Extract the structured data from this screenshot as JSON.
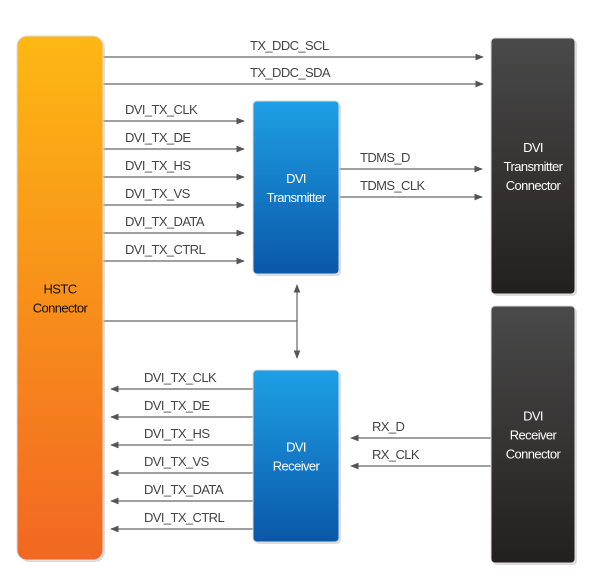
{
  "blocks": {
    "hstc": {
      "lines": [
        "HSTC",
        "Connector"
      ],
      "color_top": "#fdb813",
      "color_bottom": "#f26722"
    },
    "transmitter": {
      "lines": [
        "DVI",
        "Transmitter"
      ],
      "color_top": "#1ea0e6",
      "color_bottom": "#0a57a8"
    },
    "receiver": {
      "lines": [
        "DVI",
        "Receiver"
      ],
      "color_top": "#1ea0e6",
      "color_bottom": "#0a57a8"
    },
    "tx_connector": {
      "lines": [
        "DVI",
        "Transmitter",
        "Connector"
      ],
      "color_top": "#4a4a4a",
      "color_bottom": "#231f1e"
    },
    "rx_connector": {
      "lines": [
        "DVI",
        "Receiver",
        "Connector"
      ],
      "color_top": "#4a4a4a",
      "color_bottom": "#231f1e"
    }
  },
  "signals": {
    "ddc": [
      "TX_DDC_SCL",
      "TX_DDC_SDA"
    ],
    "to_transmitter": [
      "DVI_TX_CLK",
      "DVI_TX_DE",
      "DVI_TX_HS",
      "DVI_TX_VS",
      "DVI_TX_DATA",
      "DVI_TX_CTRL"
    ],
    "transmitter_out": [
      "TDMS_D",
      "TDMS_CLK"
    ],
    "from_receiver": [
      "DVI_TX_CLK",
      "DVI_TX_DE",
      "DVI_TX_HS",
      "DVI_TX_VS",
      "DVI_TX_DATA",
      "DVI_TX_CTRL"
    ],
    "receiver_in": [
      "RX_D",
      "RX_CLK"
    ]
  }
}
